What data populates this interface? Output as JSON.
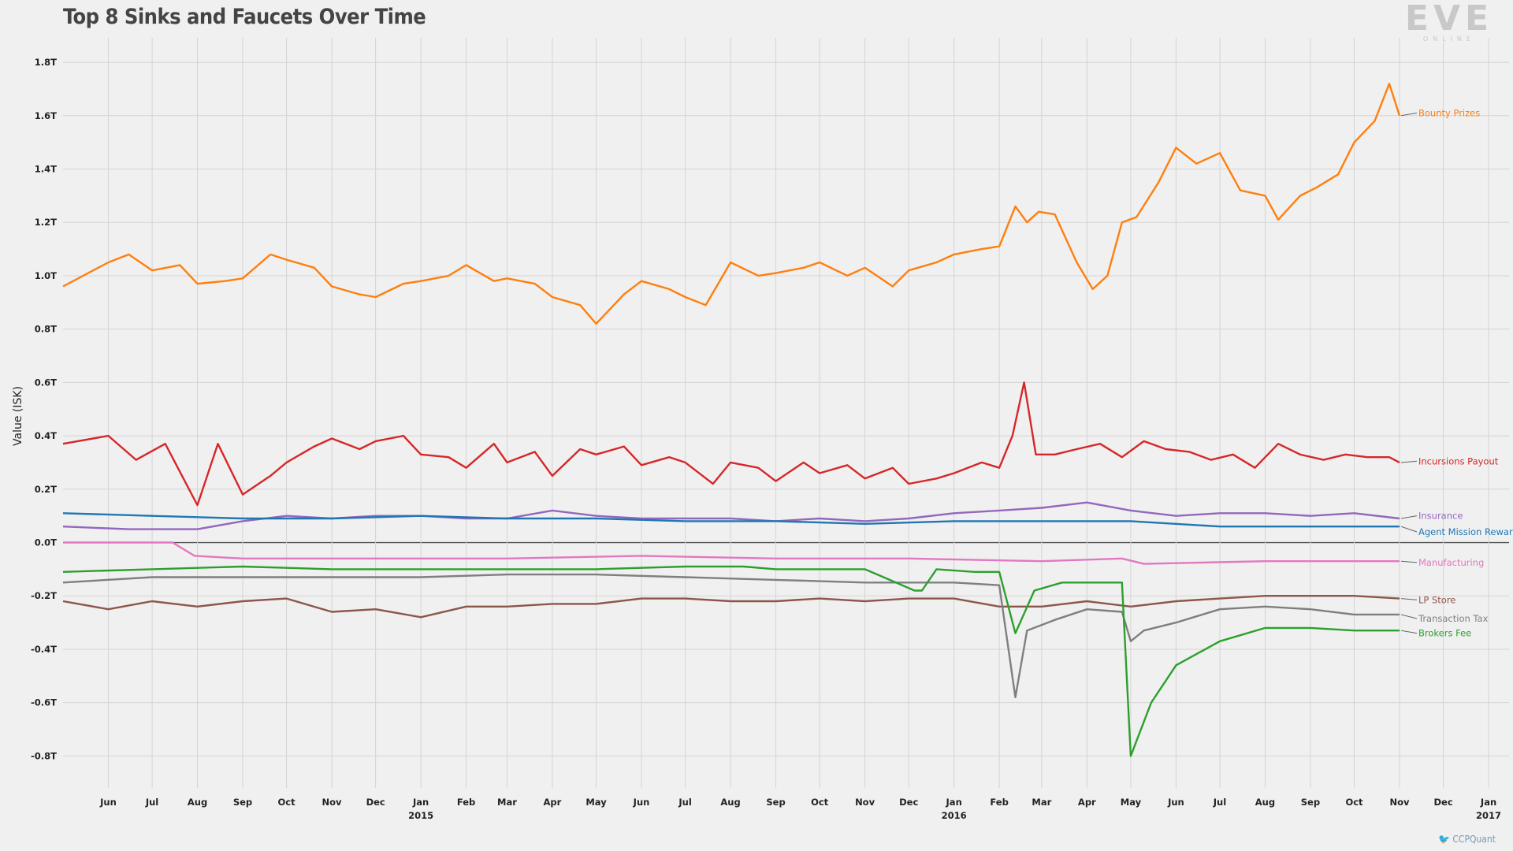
{
  "title": "Top 8 Sinks and Faucets Over Time",
  "logo": {
    "mark": "EVE",
    "sub": "ONLINE"
  },
  "credit": {
    "icon": "twitter-bird-icon",
    "text": "CCPQuant"
  },
  "chart_data": {
    "type": "line",
    "title": "Top 8 Sinks and Faucets Over Time",
    "ylabel": "Value (ISK)",
    "ylim": [
      -0.92,
      1.88
    ],
    "y_ticks": [
      1.8,
      1.6,
      1.4,
      1.2,
      1.0,
      0.8,
      0.6,
      0.4,
      0.2,
      0.0,
      -0.2,
      -0.4,
      -0.6,
      -0.8
    ],
    "y_tick_labels": [
      "1.8T",
      "1.6T",
      "1.4T",
      "1.2T",
      "1.0T",
      "0.8T",
      "0.6T",
      "0.4T",
      "0.2T",
      "0.0T",
      "-0.2T",
      "-0.4T",
      "-0.6T",
      "-0.8T"
    ],
    "x_range": [
      "2014-05-01",
      "2017-01-15"
    ],
    "x_ticks": [
      {
        "date": "2014-06-01",
        "label": "Jun",
        "year": ""
      },
      {
        "date": "2014-07-01",
        "label": "Jul",
        "year": ""
      },
      {
        "date": "2014-08-01",
        "label": "Aug",
        "year": ""
      },
      {
        "date": "2014-09-01",
        "label": "Sep",
        "year": ""
      },
      {
        "date": "2014-10-01",
        "label": "Oct",
        "year": ""
      },
      {
        "date": "2014-11-01",
        "label": "Nov",
        "year": ""
      },
      {
        "date": "2014-12-01",
        "label": "Dec",
        "year": ""
      },
      {
        "date": "2015-01-01",
        "label": "Jan",
        "year": "2015"
      },
      {
        "date": "2015-02-01",
        "label": "Feb",
        "year": ""
      },
      {
        "date": "2015-03-01",
        "label": "Mar",
        "year": ""
      },
      {
        "date": "2015-04-01",
        "label": "Apr",
        "year": ""
      },
      {
        "date": "2015-05-01",
        "label": "May",
        "year": ""
      },
      {
        "date": "2015-06-01",
        "label": "Jun",
        "year": ""
      },
      {
        "date": "2015-07-01",
        "label": "Jul",
        "year": ""
      },
      {
        "date": "2015-08-01",
        "label": "Aug",
        "year": ""
      },
      {
        "date": "2015-09-01",
        "label": "Sep",
        "year": ""
      },
      {
        "date": "2015-10-01",
        "label": "Oct",
        "year": ""
      },
      {
        "date": "2015-11-01",
        "label": "Nov",
        "year": ""
      },
      {
        "date": "2015-12-01",
        "label": "Dec",
        "year": ""
      },
      {
        "date": "2016-01-01",
        "label": "Jan",
        "year": "2016"
      },
      {
        "date": "2016-02-01",
        "label": "Feb",
        "year": ""
      },
      {
        "date": "2016-03-01",
        "label": "Mar",
        "year": ""
      },
      {
        "date": "2016-04-01",
        "label": "Apr",
        "year": ""
      },
      {
        "date": "2016-05-01",
        "label": "May",
        "year": ""
      },
      {
        "date": "2016-06-01",
        "label": "Jun",
        "year": ""
      },
      {
        "date": "2016-07-01",
        "label": "Jul",
        "year": ""
      },
      {
        "date": "2016-08-01",
        "label": "Aug",
        "year": ""
      },
      {
        "date": "2016-09-01",
        "label": "Sep",
        "year": ""
      },
      {
        "date": "2016-10-01",
        "label": "Oct",
        "year": ""
      },
      {
        "date": "2016-11-01",
        "label": "Nov",
        "year": ""
      },
      {
        "date": "2016-12-01",
        "label": "Dec",
        "year": ""
      },
      {
        "date": "2017-01-01",
        "label": "Jan",
        "year": "2017"
      }
    ],
    "grid": true,
    "legend": "inline labels at right end of each series",
    "series": [
      {
        "name": "Bounty Prizes",
        "color": "#ff7f0e",
        "x": [
          "2014-05-01",
          "2014-06-01",
          "2014-06-15",
          "2014-07-01",
          "2014-07-20",
          "2014-08-01",
          "2014-08-20",
          "2014-09-01",
          "2014-09-20",
          "2014-10-01",
          "2014-10-20",
          "2014-11-01",
          "2014-11-20",
          "2014-12-01",
          "2014-12-20",
          "2015-01-01",
          "2015-01-20",
          "2015-02-01",
          "2015-02-20",
          "2015-03-01",
          "2015-03-20",
          "2015-04-01",
          "2015-04-20",
          "2015-05-01",
          "2015-05-20",
          "2015-06-01",
          "2015-06-20",
          "2015-07-01",
          "2015-07-15",
          "2015-08-01",
          "2015-08-20",
          "2015-09-01",
          "2015-09-20",
          "2015-10-01",
          "2015-10-20",
          "2015-11-01",
          "2015-11-20",
          "2015-12-01",
          "2015-12-20",
          "2016-01-01",
          "2016-01-20",
          "2016-02-01",
          "2016-02-12",
          "2016-02-20",
          "2016-02-28",
          "2016-03-10",
          "2016-03-25",
          "2016-04-05",
          "2016-04-15",
          "2016-04-25",
          "2016-05-05",
          "2016-05-20",
          "2016-06-01",
          "2016-06-15",
          "2016-07-01",
          "2016-07-15",
          "2016-08-01",
          "2016-08-10",
          "2016-08-25",
          "2016-09-05",
          "2016-09-20",
          "2016-10-01",
          "2016-10-15",
          "2016-10-25",
          "2016-11-01"
        ],
        "y": [
          0.96,
          1.05,
          1.08,
          1.02,
          1.04,
          0.97,
          0.98,
          0.99,
          1.08,
          1.06,
          1.03,
          0.96,
          0.93,
          0.92,
          0.97,
          0.98,
          1.0,
          1.04,
          0.98,
          0.99,
          0.97,
          0.92,
          0.89,
          0.82,
          0.93,
          0.98,
          0.95,
          0.92,
          0.89,
          1.05,
          1.0,
          1.01,
          1.03,
          1.05,
          1.0,
          1.03,
          0.96,
          1.02,
          1.05,
          1.08,
          1.1,
          1.11,
          1.26,
          1.2,
          1.24,
          1.23,
          1.05,
          0.95,
          1.0,
          1.2,
          1.22,
          1.35,
          1.48,
          1.42,
          1.46,
          1.32,
          1.3,
          1.21,
          1.3,
          1.33,
          1.38,
          1.5,
          1.58,
          1.72,
          1.6
        ]
      },
      {
        "name": "Incursions Payout",
        "color": "#d62728",
        "x": [
          "2014-05-01",
          "2014-06-01",
          "2014-06-20",
          "2014-07-10",
          "2014-08-01",
          "2014-08-15",
          "2014-09-01",
          "2014-09-20",
          "2014-10-01",
          "2014-10-20",
          "2014-11-01",
          "2014-11-20",
          "2014-12-01",
          "2014-12-20",
          "2015-01-01",
          "2015-01-20",
          "2015-02-01",
          "2015-02-20",
          "2015-03-01",
          "2015-03-20",
          "2015-04-01",
          "2015-04-20",
          "2015-05-01",
          "2015-05-20",
          "2015-06-01",
          "2015-06-20",
          "2015-07-01",
          "2015-07-20",
          "2015-08-01",
          "2015-08-20",
          "2015-09-01",
          "2015-09-20",
          "2015-10-01",
          "2015-10-20",
          "2015-11-01",
          "2015-11-20",
          "2015-12-01",
          "2015-12-20",
          "2016-01-01",
          "2016-01-20",
          "2016-02-01",
          "2016-02-10",
          "2016-02-18",
          "2016-02-26",
          "2016-03-10",
          "2016-03-25",
          "2016-04-10",
          "2016-04-25",
          "2016-05-10",
          "2016-05-25",
          "2016-06-10",
          "2016-06-25",
          "2016-07-10",
          "2016-07-25",
          "2016-08-10",
          "2016-08-25",
          "2016-09-10",
          "2016-09-25",
          "2016-10-10",
          "2016-10-25",
          "2016-11-01"
        ],
        "y": [
          0.37,
          0.4,
          0.31,
          0.37,
          0.14,
          0.37,
          0.18,
          0.25,
          0.3,
          0.36,
          0.39,
          0.35,
          0.38,
          0.4,
          0.33,
          0.32,
          0.28,
          0.37,
          0.3,
          0.34,
          0.25,
          0.35,
          0.33,
          0.36,
          0.29,
          0.32,
          0.3,
          0.22,
          0.3,
          0.28,
          0.23,
          0.3,
          0.26,
          0.29,
          0.24,
          0.28,
          0.22,
          0.24,
          0.26,
          0.3,
          0.28,
          0.4,
          0.6,
          0.33,
          0.33,
          0.35,
          0.37,
          0.32,
          0.38,
          0.35,
          0.34,
          0.31,
          0.33,
          0.28,
          0.37,
          0.33,
          0.31,
          0.33,
          0.32,
          0.32,
          0.3
        ]
      },
      {
        "name": "Insurance",
        "color": "#9467bd",
        "x": [
          "2014-05-01",
          "2014-06-15",
          "2014-08-01",
          "2014-09-01",
          "2014-10-01",
          "2014-11-01",
          "2014-12-01",
          "2015-01-01",
          "2015-02-01",
          "2015-03-01",
          "2015-04-01",
          "2015-05-01",
          "2015-06-01",
          "2015-07-01",
          "2015-08-01",
          "2015-09-01",
          "2015-10-01",
          "2015-11-01",
          "2015-12-01",
          "2016-01-01",
          "2016-02-01",
          "2016-03-01",
          "2016-04-01",
          "2016-05-01",
          "2016-06-01",
          "2016-07-01",
          "2016-08-01",
          "2016-09-01",
          "2016-10-01",
          "2016-11-01"
        ],
        "y": [
          0.06,
          0.05,
          0.05,
          0.08,
          0.1,
          0.09,
          0.1,
          0.1,
          0.09,
          0.09,
          0.12,
          0.1,
          0.09,
          0.09,
          0.09,
          0.08,
          0.09,
          0.08,
          0.09,
          0.11,
          0.12,
          0.13,
          0.15,
          0.12,
          0.1,
          0.11,
          0.11,
          0.1,
          0.11,
          0.09
        ]
      },
      {
        "name": "Agent Mission Rewards",
        "color": "#1f77b4",
        "x": [
          "2014-05-01",
          "2014-07-01",
          "2014-09-01",
          "2014-11-01",
          "2015-01-01",
          "2015-03-01",
          "2015-05-01",
          "2015-07-01",
          "2015-09-01",
          "2015-11-01",
          "2016-01-01",
          "2016-03-01",
          "2016-05-01",
          "2016-07-01",
          "2016-09-01",
          "2016-11-01"
        ],
        "y": [
          0.11,
          0.1,
          0.09,
          0.09,
          0.1,
          0.09,
          0.09,
          0.08,
          0.08,
          0.07,
          0.08,
          0.08,
          0.08,
          0.06,
          0.06,
          0.06
        ]
      },
      {
        "name": "Manufacturing",
        "color": "#e377c2",
        "x": [
          "2014-05-01",
          "2014-07-15",
          "2014-07-30",
          "2014-09-01",
          "2014-12-01",
          "2015-03-01",
          "2015-06-01",
          "2015-09-01",
          "2015-12-01",
          "2016-03-01",
          "2016-04-25",
          "2016-05-10",
          "2016-08-01",
          "2016-11-01"
        ],
        "y": [
          0.0,
          0.0,
          -0.05,
          -0.06,
          -0.06,
          -0.06,
          -0.05,
          -0.06,
          -0.06,
          -0.07,
          -0.06,
          -0.08,
          -0.07,
          -0.07
        ]
      },
      {
        "name": "LP Store",
        "color": "#8c564b",
        "x": [
          "2014-05-01",
          "2014-06-01",
          "2014-07-01",
          "2014-08-01",
          "2014-09-01",
          "2014-10-01",
          "2014-11-01",
          "2014-12-01",
          "2015-01-01",
          "2015-02-01",
          "2015-03-01",
          "2015-04-01",
          "2015-05-01",
          "2015-06-01",
          "2015-07-01",
          "2015-08-01",
          "2015-09-01",
          "2015-10-01",
          "2015-11-01",
          "2015-12-01",
          "2016-01-01",
          "2016-02-01",
          "2016-03-01",
          "2016-04-01",
          "2016-05-01",
          "2016-06-01",
          "2016-07-01",
          "2016-08-01",
          "2016-09-01",
          "2016-10-01",
          "2016-11-01"
        ],
        "y": [
          -0.22,
          -0.25,
          -0.22,
          -0.24,
          -0.22,
          -0.21,
          -0.26,
          -0.25,
          -0.28,
          -0.24,
          -0.24,
          -0.23,
          -0.23,
          -0.21,
          -0.21,
          -0.22,
          -0.22,
          -0.21,
          -0.22,
          -0.21,
          -0.21,
          -0.24,
          -0.24,
          -0.22,
          -0.24,
          -0.22,
          -0.21,
          -0.2,
          -0.2,
          -0.2,
          -0.21
        ]
      },
      {
        "name": "Transaction Tax",
        "color": "#7f7f7f",
        "x": [
          "2014-05-01",
          "2014-07-01",
          "2014-09-01",
          "2014-11-01",
          "2015-01-01",
          "2015-03-01",
          "2015-05-01",
          "2015-07-01",
          "2015-09-01",
          "2015-11-01",
          "2016-01-01",
          "2016-02-01",
          "2016-02-12",
          "2016-02-20",
          "2016-03-10",
          "2016-04-01",
          "2016-04-25",
          "2016-05-01",
          "2016-05-10",
          "2016-06-01",
          "2016-07-01",
          "2016-08-01",
          "2016-09-01",
          "2016-10-01",
          "2016-11-01"
        ],
        "y": [
          -0.15,
          -0.13,
          -0.13,
          -0.13,
          -0.13,
          -0.12,
          -0.12,
          -0.13,
          -0.14,
          -0.15,
          -0.15,
          -0.16,
          -0.58,
          -0.33,
          -0.29,
          -0.25,
          -0.26,
          -0.37,
          -0.33,
          -0.3,
          -0.25,
          -0.24,
          -0.25,
          -0.27,
          -0.27
        ]
      },
      {
        "name": "Brokers Fee",
        "color": "#2ca02c",
        "x": [
          "2014-05-01",
          "2014-07-01",
          "2014-09-01",
          "2014-11-01",
          "2015-01-01",
          "2015-03-01",
          "2015-05-01",
          "2015-07-01",
          "2015-08-10",
          "2015-09-01",
          "2015-11-01",
          "2015-12-05",
          "2015-12-10",
          "2015-12-20",
          "2016-01-15",
          "2016-02-01",
          "2016-02-12",
          "2016-02-25",
          "2016-03-15",
          "2016-04-25",
          "2016-05-01",
          "2016-05-15",
          "2016-06-01",
          "2016-07-01",
          "2016-08-01",
          "2016-09-01",
          "2016-10-01",
          "2016-11-01"
        ],
        "y": [
          -0.11,
          -0.1,
          -0.09,
          -0.1,
          -0.1,
          -0.1,
          -0.1,
          -0.09,
          -0.09,
          -0.1,
          -0.1,
          -0.18,
          -0.18,
          -0.1,
          -0.11,
          -0.11,
          -0.34,
          -0.18,
          -0.15,
          -0.15,
          -0.8,
          -0.6,
          -0.46,
          -0.37,
          -0.32,
          -0.32,
          -0.33,
          -0.33
        ]
      }
    ]
  }
}
